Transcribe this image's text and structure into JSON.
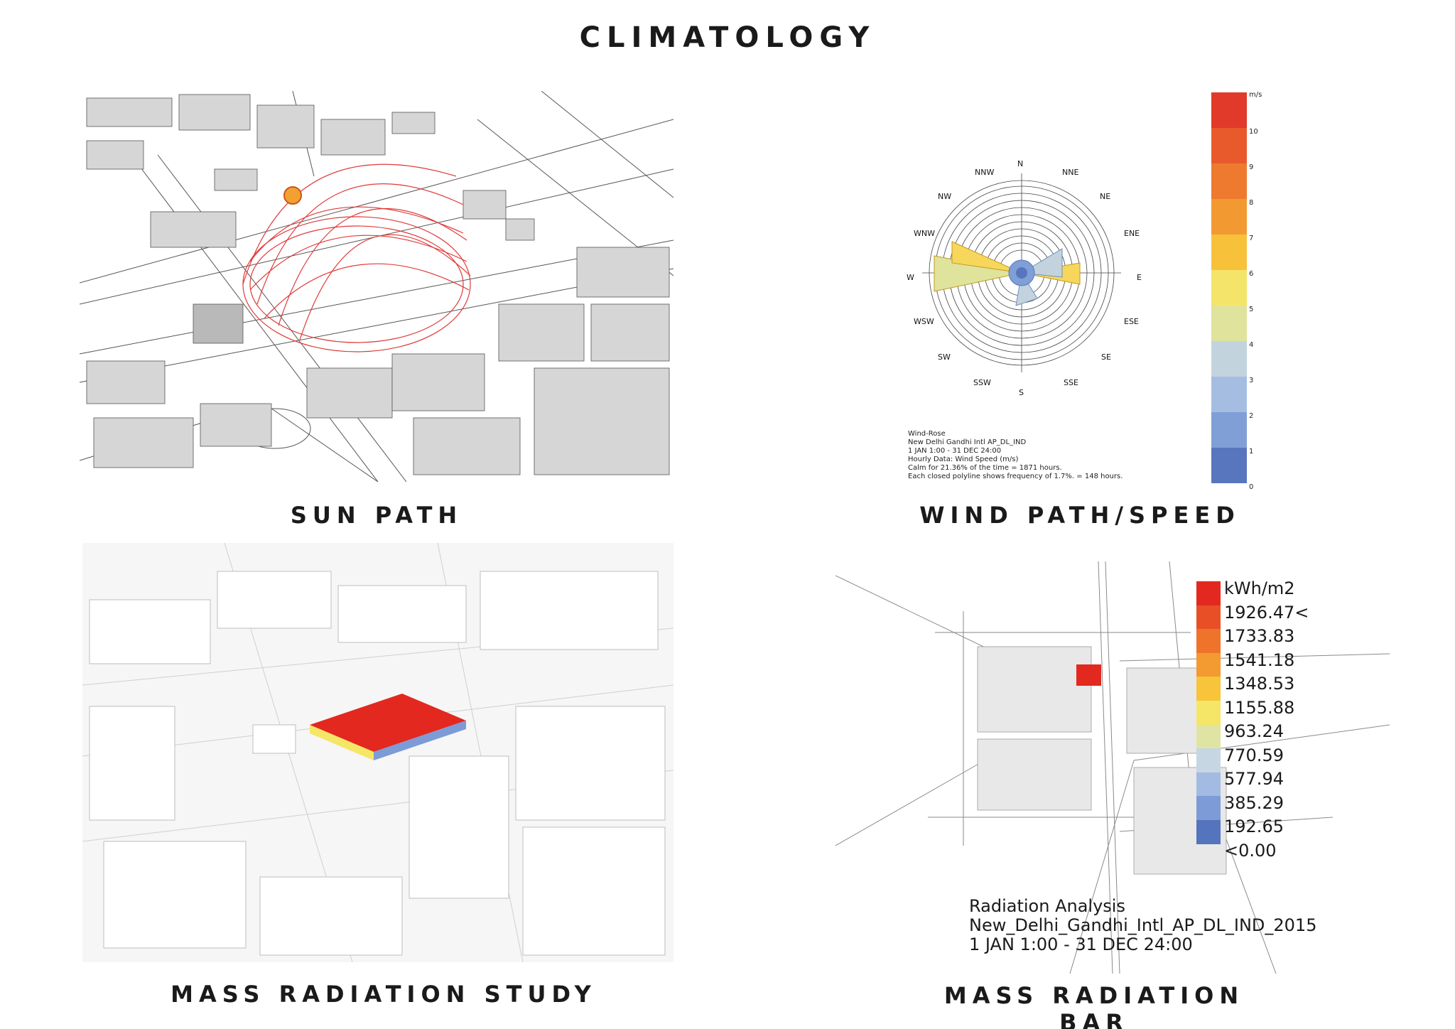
{
  "title": "CLIMATOLOGY",
  "captions": {
    "sun_path": "SUN PATH",
    "wind": "WIND PATH/SPEED",
    "mass_radiation_study": "MASS RADIATION STUDY",
    "mass_radiation_bar": "MASS RADIATION BAR"
  },
  "wind_rose": {
    "directions": [
      "N",
      "NNE",
      "NE",
      "ENE",
      "E",
      "ESE",
      "SE",
      "SSE",
      "S",
      "SSW",
      "SW",
      "WSW",
      "W",
      "WNW",
      "NW",
      "NNW"
    ],
    "unit": "m/s",
    "scale_ticks": [
      "10",
      "9",
      "8",
      "7",
      "6",
      "5",
      "4",
      "3",
      "2",
      "1",
      "0"
    ],
    "notes": [
      "Wind-Rose",
      "New Delhi Gandhi Intl AP_DL_IND",
      "1 JAN 1:00 - 31 DEC 24:00",
      "Hourly Data: Wind Speed (m/s)",
      "Calm for 21.36% of the time = 1871 hours.",
      "Each closed polyline shows frequency of 1.7%. = 148 hours."
    ],
    "legend_colors": [
      "#e23a2a",
      "#e85a2c",
      "#ee7a2f",
      "#f29a31",
      "#f7c23a",
      "#f4e56a",
      "#dfe39c",
      "#c3d3de",
      "#a6bde2",
      "#7f9fd6",
      "#5876bd"
    ]
  },
  "radiation": {
    "unit": "kWh/m2",
    "legend": [
      "1926.47<",
      "1733.83",
      "1541.18",
      "1348.53",
      "1155.88",
      "963.24",
      "770.59",
      "577.94",
      "385.29",
      "192.65",
      "<0.00"
    ],
    "legend_colors": [
      "#e3281f",
      "#e84f27",
      "#ee742c",
      "#f39a30",
      "#f8c43a",
      "#f5e667",
      "#dfe4a4",
      "#c6d6e3",
      "#a3bbe3",
      "#7d9bd6",
      "#5474bd"
    ],
    "notes": [
      "Radiation Analysis",
      "New_Delhi_Gandhi_Intl_AP_DL_IND_2015",
      "1 JAN 1:00 - 31 DEC 24:00"
    ]
  }
}
